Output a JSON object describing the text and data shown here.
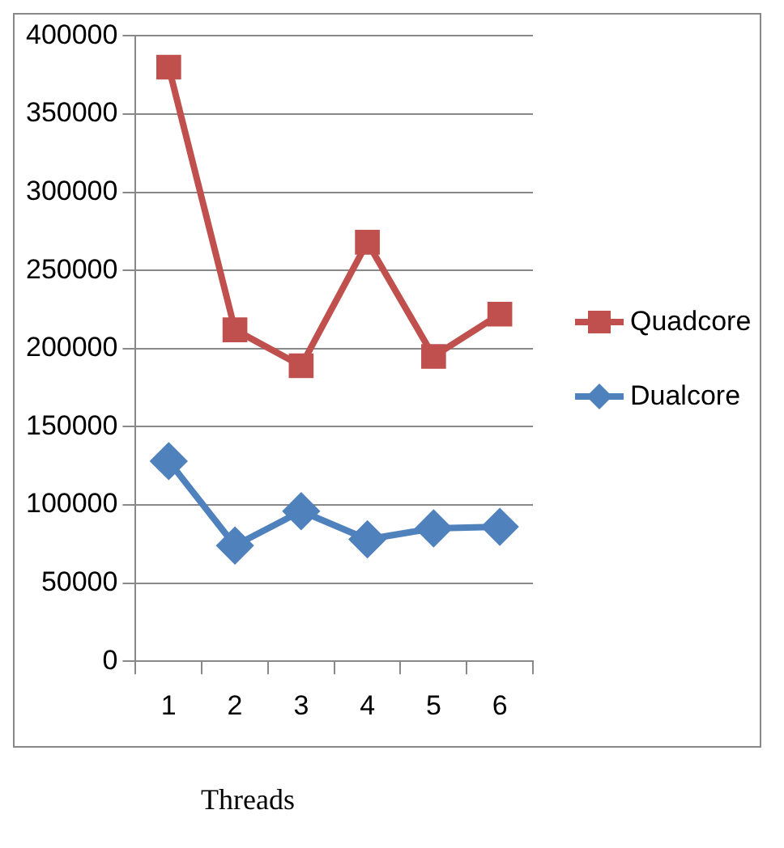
{
  "chart_data": {
    "type": "line",
    "xlabel": "Threads",
    "categories": [
      "1",
      "2",
      "3",
      "4",
      "5",
      "6"
    ],
    "series": [
      {
        "name": "Quadcore",
        "color": "#c0504d",
        "marker": "square",
        "values": [
          380000,
          212000,
          189000,
          268000,
          195000,
          222000
        ]
      },
      {
        "name": "Dualcore",
        "color": "#4f81bd",
        "marker": "diamond",
        "values": [
          128000,
          74000,
          96000,
          78000,
          85000,
          86000
        ]
      }
    ],
    "ylim": [
      0,
      400000
    ],
    "yticks": [
      0,
      50000,
      100000,
      150000,
      200000,
      250000,
      300000,
      350000,
      400000
    ],
    "grid": "y",
    "legend": "right"
  }
}
